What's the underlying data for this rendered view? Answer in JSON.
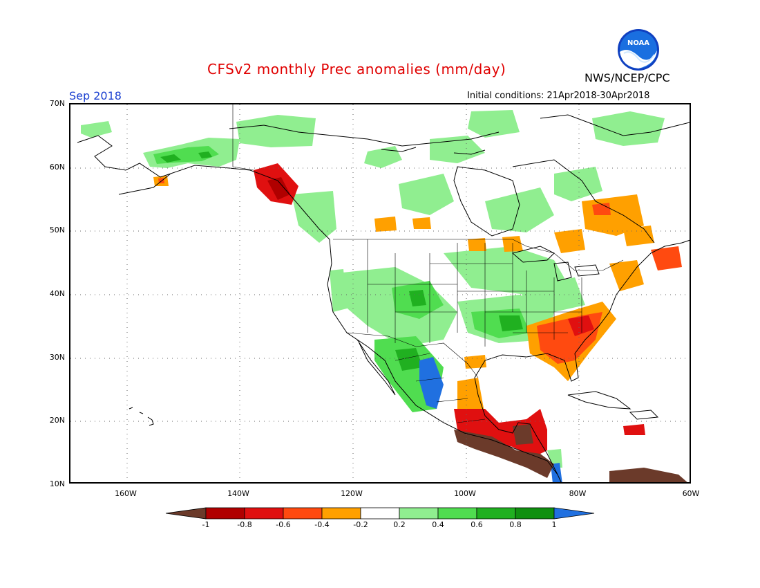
{
  "header": {
    "title": "CFSv2 monthly Prec anomalies (mm/day)",
    "month": "Sep 2018",
    "initial_conditions": "Initial conditions: 21Apr2018-30Apr2018",
    "agency": "NWS/NCEP/CPC",
    "logo_text": "NOAA"
  },
  "axes": {
    "lat_labels": [
      "70N",
      "60N",
      "50N",
      "40N",
      "30N",
      "20N",
      "10N"
    ],
    "lon_labels": [
      "160W",
      "140W",
      "120W",
      "100W",
      "80W",
      "60W"
    ]
  },
  "colorbar": {
    "labels": [
      "-1",
      "-0.8",
      "-0.6",
      "-0.4",
      "-0.2",
      "0.2",
      "0.4",
      "0.6",
      "0.8",
      "1"
    ],
    "colors": {
      "lt_-1": "#6b3a2a",
      "-1_-0.8": "#b00000",
      "-0.8_-0.6": "#e01010",
      "-0.6_-0.4": "#ff4a10",
      "-0.4_-0.2": "#ffa000",
      "-0.2_0.2": "#ffffff",
      "0.2_0.4": "#90ee90",
      "0.4_0.6": "#50dd50",
      "0.6_0.8": "#20b020",
      "0.8_1": "#109010",
      "gt_1": "#2070e0"
    }
  }
}
